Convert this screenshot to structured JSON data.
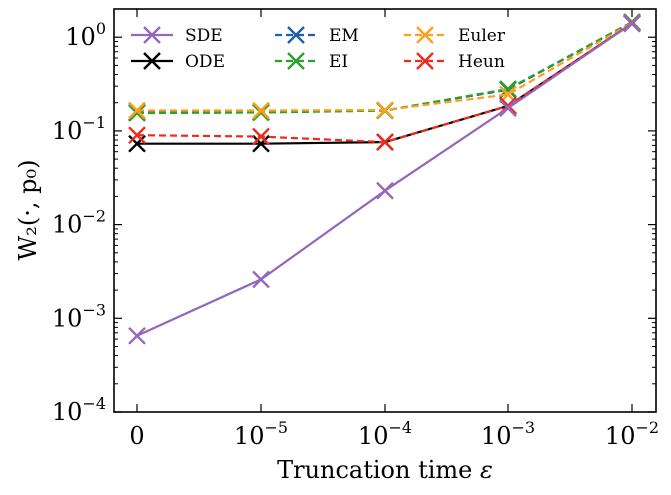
{
  "chart_data": {
    "type": "line",
    "xlabel_text": "Truncation time ",
    "xlabel_symbol": "ε",
    "ylabel": "W₂(·, p₀)",
    "yscale": "log",
    "ylim": [
      0.0001,
      2.0
    ],
    "x_tick_labels": [
      {
        "base": "0",
        "exp": ""
      },
      {
        "base": "10",
        "exp": "−5"
      },
      {
        "base": "10",
        "exp": "−4"
      },
      {
        "base": "10",
        "exp": "−3"
      },
      {
        "base": "10",
        "exp": "−2"
      }
    ],
    "y_ticks": [
      {
        "value": 0.0001,
        "base": "10",
        "exp": "−4"
      },
      {
        "value": 0.001,
        "base": "10",
        "exp": "−3"
      },
      {
        "value": 0.01,
        "base": "10",
        "exp": "−2"
      },
      {
        "value": 0.1,
        "base": "10",
        "exp": "−1"
      },
      {
        "value": 1,
        "base": "10",
        "exp": "0"
      }
    ],
    "grid": false,
    "legend_placement": "top",
    "series": [
      {
        "name": "SDE",
        "color": "#9467bd",
        "dash": "solid",
        "values": [
          0.00065,
          0.0026,
          0.023,
          0.175,
          1.4
        ]
      },
      {
        "name": "ODE",
        "color": "#000000",
        "dash": "solid",
        "values": [
          0.073,
          0.073,
          0.076,
          0.185,
          1.4
        ]
      },
      {
        "name": "EM",
        "color": "#1f5fa8",
        "dash": "dashed",
        "values": [
          0.158,
          0.158,
          0.165,
          0.275,
          1.45
        ]
      },
      {
        "name": "EI",
        "color": "#2ca02c",
        "dash": "dashed",
        "values": [
          0.155,
          0.157,
          0.165,
          0.28,
          1.45
        ]
      },
      {
        "name": "Euler",
        "color": "#ff9f1c",
        "dash": "dashed",
        "values": [
          0.165,
          0.165,
          0.167,
          0.245,
          1.42
        ]
      },
      {
        "name": "Heun",
        "color": "#ee2a1a",
        "dash": "dashed",
        "values": [
          0.09,
          0.087,
          0.076,
          0.185,
          1.4
        ]
      }
    ]
  }
}
